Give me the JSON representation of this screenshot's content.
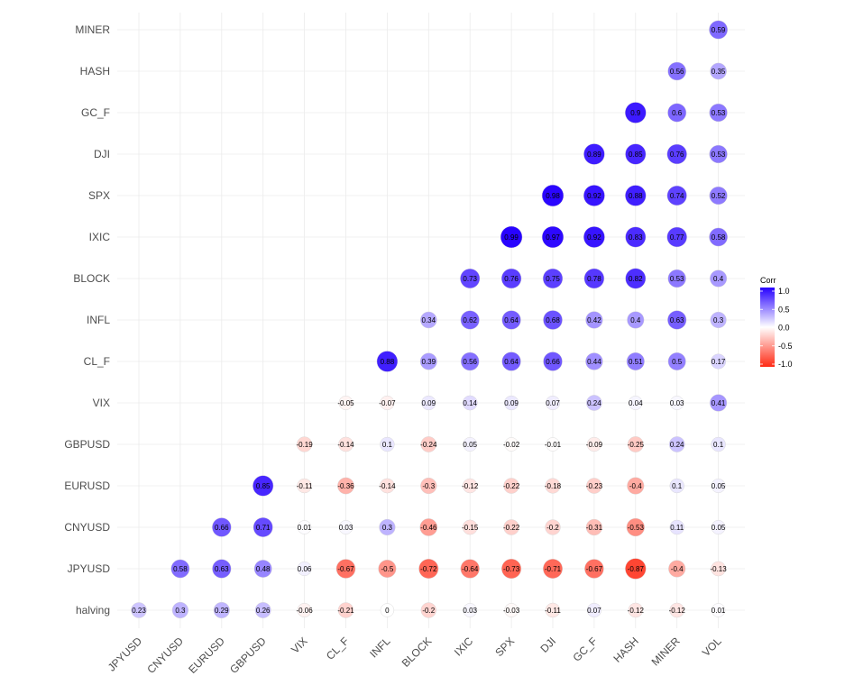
{
  "chart_data": {
    "type": "heatmap",
    "style": "lower-triangle correlation circles",
    "x_labels": [
      "JPYUSD",
      "CNYUSD",
      "EURUSD",
      "GBPUSD",
      "VIX",
      "CL_F",
      "INFL",
      "BLOCK",
      "IXIC",
      "SPX",
      "DJI",
      "GC_F",
      "HASH",
      "MINER",
      "VOL"
    ],
    "y_labels": [
      "halving",
      "JPYUSD",
      "CNYUSD",
      "EURUSD",
      "GBPUSD",
      "VIX",
      "CL_F",
      "INFL",
      "BLOCK",
      "IXIC",
      "SPX",
      "DJI",
      "GC_F",
      "HASH",
      "MINER"
    ],
    "values": [
      [
        0.23,
        0.3,
        0.29,
        0.26,
        -0.06,
        -0.21,
        0,
        -0.2,
        0.03,
        -0.03,
        -0.11,
        0.07,
        -0.12,
        -0.12,
        0.01
      ],
      [
        null,
        0.58,
        0.63,
        0.48,
        0.06,
        -0.67,
        -0.5,
        -0.72,
        -0.64,
        -0.73,
        -0.71,
        -0.67,
        -0.87,
        -0.4,
        -0.13
      ],
      [
        null,
        null,
        0.66,
        0.71,
        0.01,
        0.03,
        0.3,
        -0.46,
        -0.15,
        -0.22,
        -0.2,
        -0.31,
        -0.53,
        0.11,
        0.05
      ],
      [
        null,
        null,
        null,
        0.85,
        -0.11,
        -0.36,
        -0.14,
        -0.3,
        -0.12,
        -0.22,
        -0.18,
        -0.23,
        -0.4,
        0.1,
        0.05
      ],
      [
        null,
        null,
        null,
        null,
        -0.19,
        -0.14,
        0.1,
        -0.24,
        0.05,
        -0.02,
        -0.01,
        -0.09,
        -0.25,
        0.24,
        0.1
      ],
      [
        null,
        null,
        null,
        null,
        null,
        -0.05,
        -0.07,
        0.09,
        0.14,
        0.09,
        0.07,
        0.24,
        0.04,
        0.03,
        0.41
      ],
      [
        null,
        null,
        null,
        null,
        null,
        null,
        0.88,
        0.39,
        0.56,
        0.64,
        0.66,
        0.44,
        0.51,
        0.5,
        0.17
      ],
      [
        null,
        null,
        null,
        null,
        null,
        null,
        null,
        0.34,
        0.62,
        0.64,
        0.68,
        0.42,
        0.4,
        0.63,
        0.3
      ],
      [
        null,
        null,
        null,
        null,
        null,
        null,
        null,
        null,
        0.73,
        0.76,
        0.75,
        0.78,
        0.82,
        0.53,
        0.4
      ],
      [
        null,
        null,
        null,
        null,
        null,
        null,
        null,
        null,
        null,
        0.99,
        0.97,
        0.92,
        0.83,
        0.77,
        0.58
      ],
      [
        null,
        null,
        null,
        null,
        null,
        null,
        null,
        null,
        null,
        null,
        0.98,
        0.92,
        0.88,
        0.74,
        0.52
      ],
      [
        null,
        null,
        null,
        null,
        null,
        null,
        null,
        null,
        null,
        null,
        null,
        0.89,
        0.85,
        0.76,
        0.53
      ],
      [
        null,
        null,
        null,
        null,
        null,
        null,
        null,
        null,
        null,
        null,
        null,
        null,
        0.9,
        0.6,
        0.53
      ],
      [
        null,
        null,
        null,
        null,
        null,
        null,
        null,
        null,
        null,
        null,
        null,
        null,
        null,
        0.56,
        0.35
      ],
      [
        null,
        null,
        null,
        null,
        null,
        null,
        null,
        null,
        null,
        null,
        null,
        null,
        null,
        null,
        0.59
      ]
    ],
    "legend": {
      "title": "Corr",
      "ticks": [
        "1.0",
        "0.5",
        "0.0",
        "-0.5",
        "-1.0"
      ],
      "tick_values": [
        1.0,
        0.5,
        0.0,
        -0.5,
        -1.0
      ],
      "range": [
        -1,
        1
      ],
      "placement": "right"
    },
    "colors": {
      "high": "#2600ff",
      "mid": "#ffffff",
      "low": "#ff2a14"
    },
    "grid": true
  }
}
